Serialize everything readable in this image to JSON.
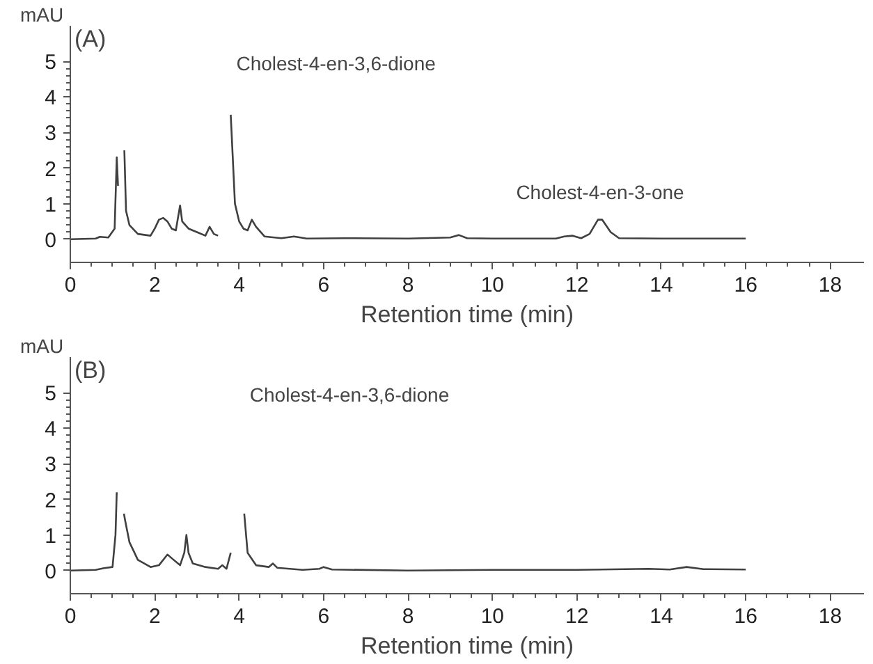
{
  "chart_data": [
    {
      "type": "line",
      "xlabel": "Retention time (min)",
      "ylabel": "mAU",
      "xlim": [
        0,
        18.8
      ],
      "ylim": [
        -0.65,
        6.0
      ],
      "xticks": [
        0,
        2,
        4,
        6,
        8,
        10,
        12,
        14,
        16,
        18
      ],
      "yticks": [
        0,
        1,
        2,
        3,
        4,
        5
      ],
      "grid": false,
      "annotations": [
        "(A)",
        "Cholest-4-en-3,6-dione",
        {
          "text": "Cholest-4-en-3-one",
          "x": 12.55,
          "y": 0.55
        }
      ],
      "series": [
        {
          "color": "#404040",
          "x": [
            0,
            0.6,
            0.7,
            0.9,
            1.05,
            1.1,
            1.13,
            1.15,
            1.18,
            1.2,
            1.25,
            1.28,
            1.32,
            1.4,
            1.6,
            1.9,
            2.0,
            2.1,
            2.2,
            2.3,
            2.4,
            2.5,
            2.6,
            2.65,
            2.8,
            3.0,
            3.2,
            3.3,
            3.4,
            3.5,
            3.55,
            3.75,
            3.8,
            3.9,
            4.0,
            4.1,
            4.2,
            4.3,
            4.4,
            4.6,
            5.0,
            5.3,
            5.6,
            6.5,
            8,
            9.0,
            9.2,
            9.4,
            10,
            11.5,
            11.7,
            11.9,
            12.1,
            12.3,
            12.5,
            12.6,
            12.8,
            13.0,
            14,
            16
          ],
          "values": [
            0,
            0.02,
            0.07,
            0.05,
            0.3,
            2.3,
            1.5,
            null,
            null,
            null,
            null,
            2.5,
            0.8,
            0.4,
            0.15,
            0.1,
            0.3,
            0.55,
            0.6,
            0.5,
            0.3,
            0.25,
            0.95,
            0.5,
            0.3,
            0.2,
            0.1,
            0.35,
            0.15,
            0.1,
            null,
            null,
            3.5,
            1.0,
            0.5,
            0.3,
            0.25,
            0.55,
            0.35,
            0.08,
            0.03,
            0.08,
            0.02,
            0.03,
            0.02,
            0.05,
            0.12,
            0.03,
            0.02,
            0.02,
            0.08,
            0.1,
            0.03,
            0.15,
            0.55,
            0.55,
            0.2,
            0.03,
            0.02,
            0.02
          ]
        }
      ]
    },
    {
      "type": "line",
      "xlabel": "Retention time (min)",
      "ylabel": "mAU",
      "xlim": [
        0,
        18.8
      ],
      "ylim": [
        -0.65,
        6.0
      ],
      "xticks": [
        0,
        2,
        4,
        6,
        8,
        10,
        12,
        14,
        16,
        18
      ],
      "yticks": [
        0,
        1,
        2,
        3,
        4,
        5
      ],
      "grid": false,
      "annotations": [
        "(B)",
        "Cholest-4-en-3,6-dione"
      ],
      "series": [
        {
          "color": "#404040",
          "x": [
            0,
            0.6,
            0.8,
            1.0,
            1.07,
            1.1,
            1.12,
            1.14,
            1.2,
            1.24,
            1.27,
            1.3,
            1.4,
            1.6,
            1.9,
            2.1,
            2.3,
            2.4,
            2.6,
            2.7,
            2.75,
            2.8,
            2.9,
            3.2,
            3.5,
            3.6,
            3.7,
            3.8,
            3.85,
            4.1,
            4.12,
            4.2,
            4.4,
            4.7,
            4.8,
            4.9,
            5.5,
            5.9,
            6.0,
            6.2,
            8,
            10,
            12,
            13.7,
            14.2,
            14.6,
            15,
            16
          ],
          "values": [
            0,
            0.02,
            0.07,
            0.1,
            1.0,
            2.2,
            null,
            null,
            null,
            null,
            1.6,
            1.4,
            0.8,
            0.3,
            0.1,
            0.15,
            0.45,
            0.35,
            0.15,
            0.5,
            1.0,
            0.5,
            0.2,
            0.1,
            0.05,
            0.15,
            0.05,
            0.5,
            null,
            null,
            1.6,
            0.5,
            0.15,
            0.1,
            0.2,
            0.08,
            0.02,
            0.05,
            0.1,
            0.03,
            0.0,
            0.02,
            0.02,
            0.05,
            0.03,
            0.1,
            0.04,
            0.03
          ]
        }
      ]
    }
  ]
}
